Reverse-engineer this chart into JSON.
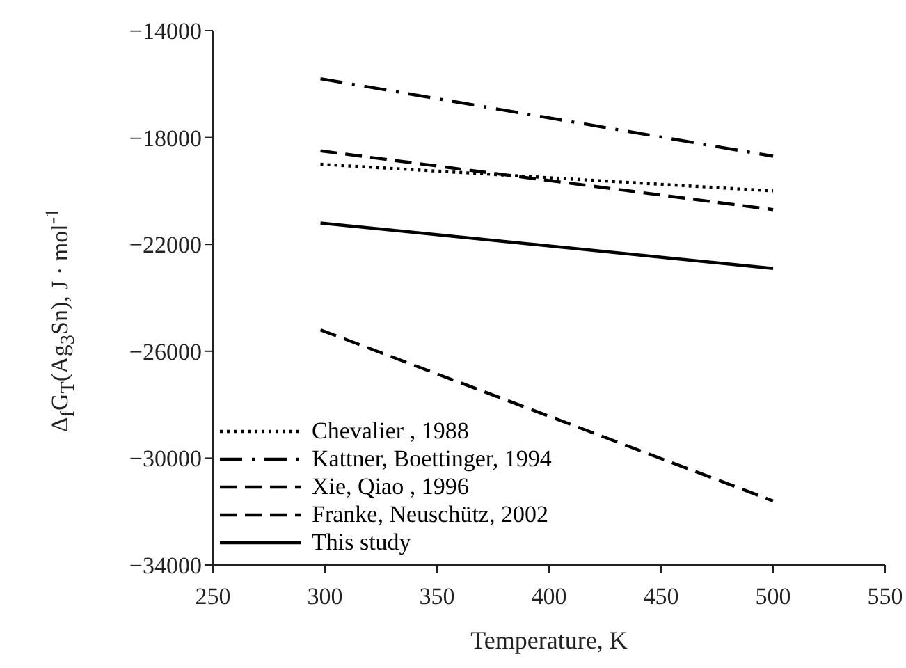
{
  "chart_data": {
    "type": "line",
    "xlabel": "Temperature, K",
    "ylabel": "Δ$_{f}$G$_{T}$(Ag$_{3}$Sn), J · mol$^{-1}$",
    "x": [
      298,
      500
    ],
    "series": [
      {
        "name": "Chevalier  , 1988",
        "color": "#000000",
        "line_style": "dotted",
        "values": [
          -19000,
          -20000
        ]
      },
      {
        "name": "Kattner, Boettinger, 1994",
        "color": "#000000",
        "line_style": "dashdot",
        "values": [
          -15800,
          -18700
        ]
      },
      {
        "name": "Xie, Qiao , 1996",
        "color": "#000000",
        "line_style": "dashed",
        "values": [
          -25200,
          -31600
        ]
      },
      {
        "name": "Franke, Neuschütz, 2002",
        "color": "#000000",
        "line_style": "dashed",
        "values": [
          -18500,
          -20700
        ]
      },
      {
        "name": "This study",
        "color": "#000000",
        "line_style": "solid",
        "values": [
          -21200,
          -22900
        ]
      }
    ],
    "xlim": [
      250,
      550
    ],
    "xticks": [
      250,
      300,
      350,
      400,
      450,
      500,
      550
    ],
    "ylim": [
      -34000,
      -14000
    ],
    "yticks": [
      -34000,
      -30000,
      -26000,
      -22000,
      -18000,
      -14000
    ],
    "grid": false,
    "legend": "bottom left",
    "marker": "none"
  }
}
